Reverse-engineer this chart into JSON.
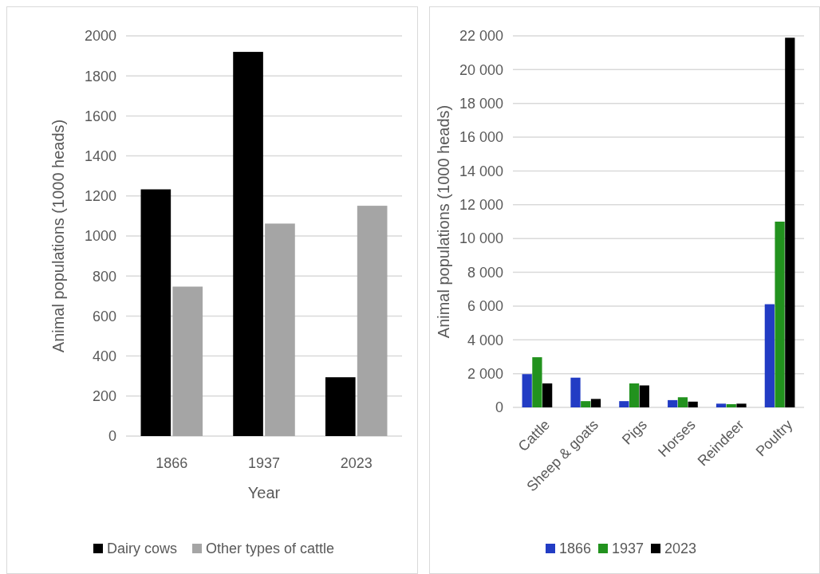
{
  "chart_data": [
    {
      "type": "bar",
      "categories": [
        "1866",
        "1937",
        "2023"
      ],
      "xlabel": "Year",
      "ylabel": "Animal populations (1000 heads)",
      "ylim": [
        0,
        2000
      ],
      "yticks": [
        0,
        200,
        400,
        600,
        800,
        1000,
        1200,
        1400,
        1600,
        1800,
        2000
      ],
      "grid": "y",
      "legend": "bottom",
      "series": [
        {
          "name": "Dairy cows",
          "color": "#000000",
          "values": [
            1233,
            1920,
            294
          ]
        },
        {
          "name": "Other types of cattle",
          "color": "#a5a5a5",
          "values": [
            747,
            1062,
            1151
          ]
        }
      ]
    },
    {
      "type": "bar",
      "categories": [
        "Cattle",
        "Sheep & goats",
        "Pigs",
        "Horses",
        "Reindeer",
        "Poultry"
      ],
      "ylabel": "Animal populations (1000 heads)",
      "ylim": [
        0,
        22000
      ],
      "yticks": [
        0,
        {
          "value": 2000,
          "label": "2 000"
        },
        {
          "value": 4000,
          "label": "4 000"
        },
        {
          "value": 6000,
          "label": "6 000"
        },
        {
          "value": 8000,
          "label": "8 000"
        },
        {
          "value": 10000,
          "label": "10 000"
        },
        {
          "value": 12000,
          "label": "12 000"
        },
        {
          "value": 14000,
          "label": "14 000"
        },
        {
          "value": 16000,
          "label": "16 000"
        },
        {
          "value": 18000,
          "label": "18 000"
        },
        {
          "value": 20000,
          "label": "20 000"
        },
        {
          "value": 22000,
          "label": "22 000"
        }
      ],
      "grid": "y",
      "legend": "bottom",
      "series": [
        {
          "name": "1866",
          "color": "#223cc4",
          "values": [
            1970,
            1760,
            370,
            430,
            220,
            6110
          ]
        },
        {
          "name": "1937",
          "color": "#22921e",
          "values": [
            2970,
            370,
            1420,
            600,
            190,
            11000
          ]
        },
        {
          "name": "2023",
          "color": "#000000",
          "values": [
            1420,
            500,
            1300,
            340,
            220,
            21890
          ]
        }
      ]
    }
  ]
}
